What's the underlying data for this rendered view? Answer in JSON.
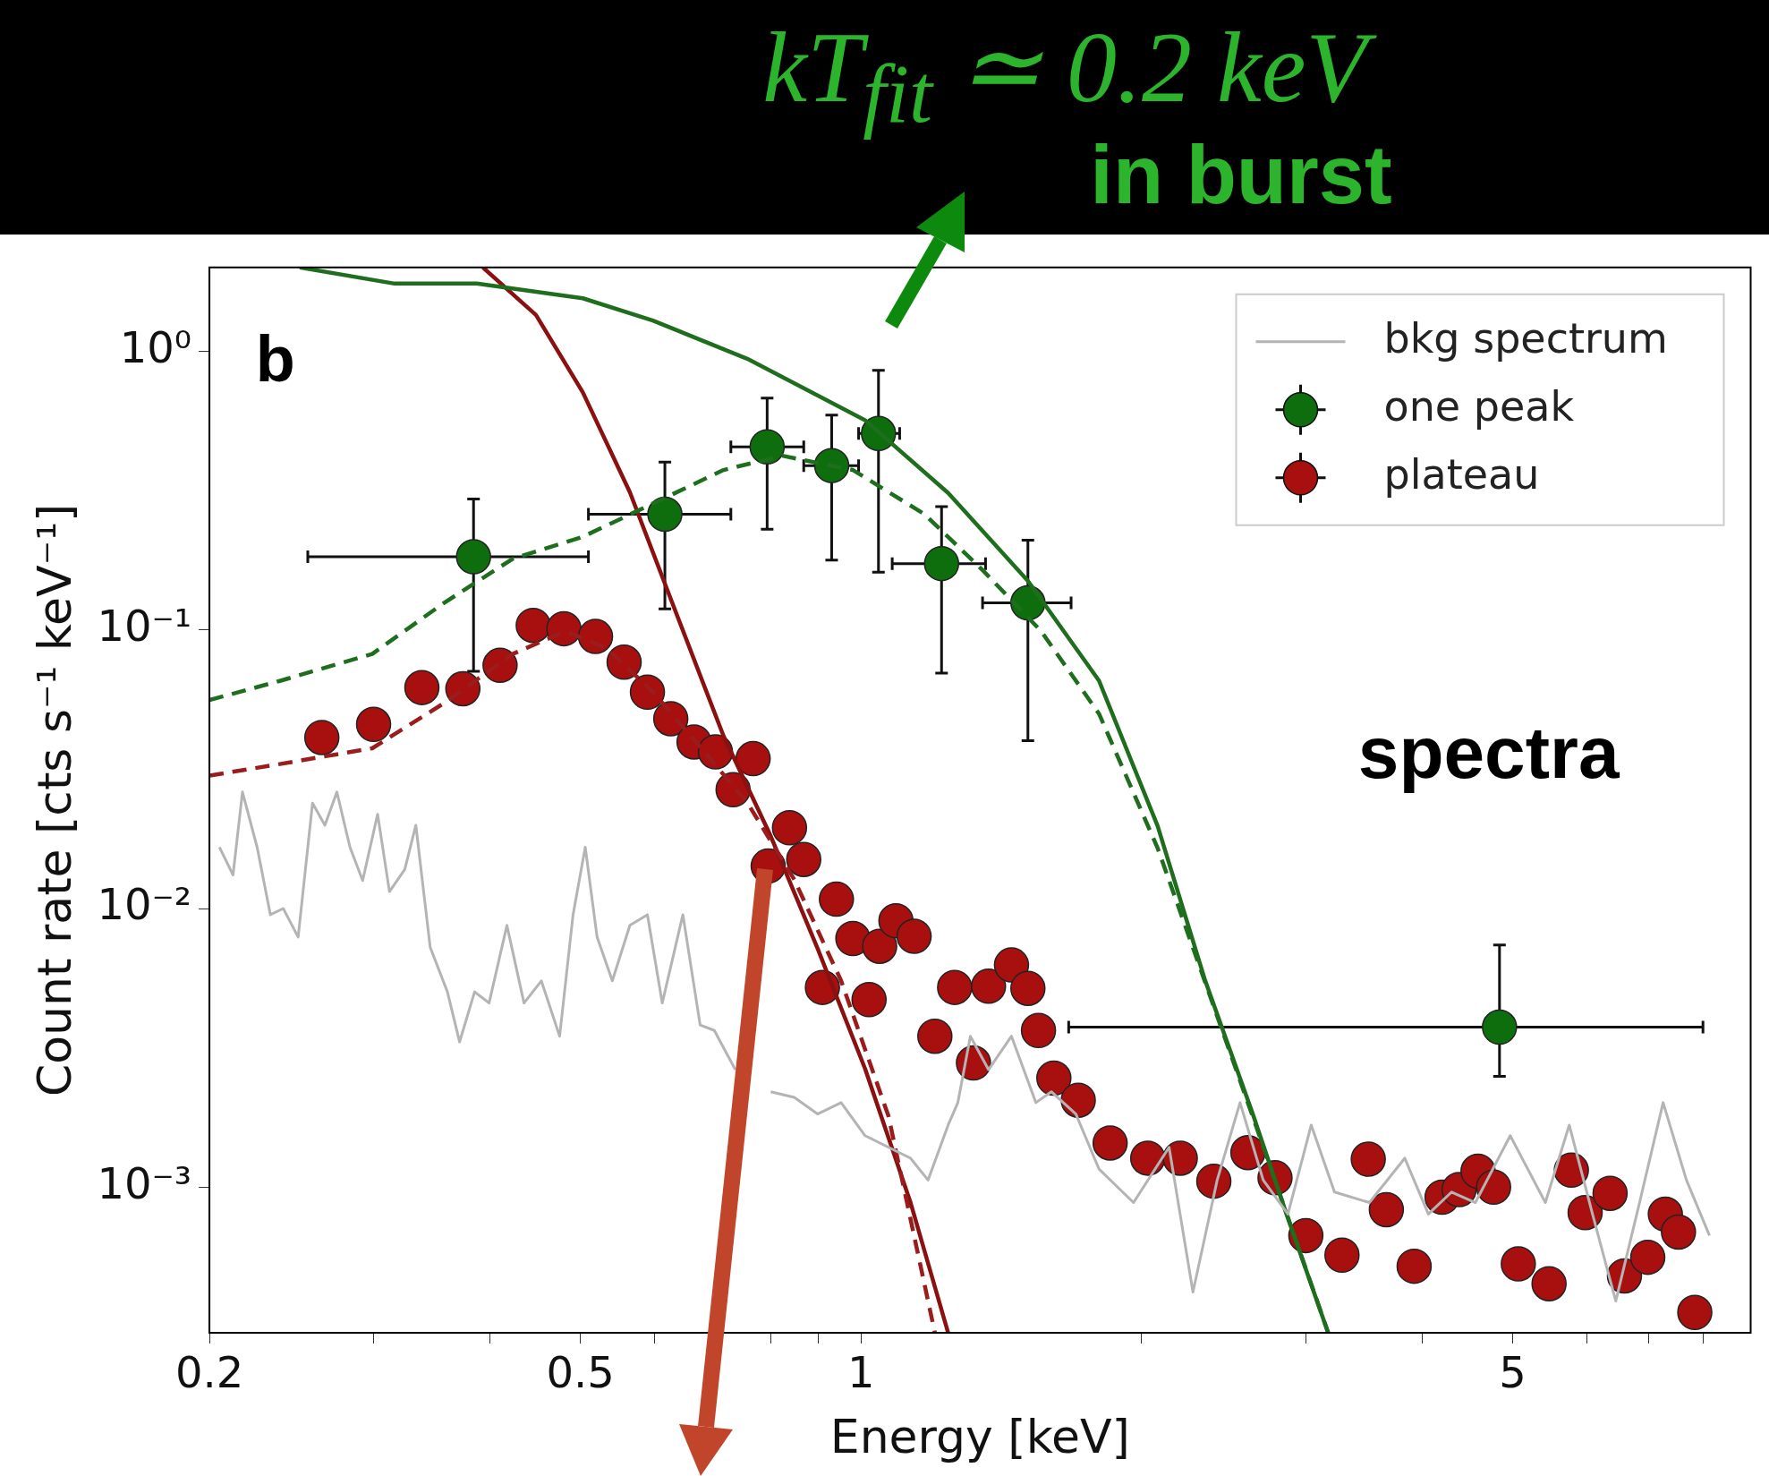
{
  "chart_data": {
    "type": "scatter",
    "title": "kT$_{fit}$ ≃ 0.2 keV",
    "subtitle": "in burst",
    "xlabel": "Energy [keV]",
    "ylabel": "Count rate [cts s⁻¹ keV⁻¹]",
    "log": "xy",
    "grid": false,
    "legend": "top right",
    "marker": "circle",
    "xlim": [
      0.2,
      9
    ],
    "ylim": [
      0.0003,
      2
    ],
    "xticks": [
      {
        "value": 0.2,
        "label": "0.2"
      },
      {
        "value": 0.3,
        "label": null
      },
      {
        "value": 0.4,
        "label": null
      },
      {
        "value": 0.5,
        "label": "0.5"
      },
      {
        "value": 0.6,
        "label": null
      },
      {
        "value": 0.7,
        "label": null
      },
      {
        "value": 0.8,
        "label": null
      },
      {
        "value": 0.9,
        "label": null
      },
      1,
      {
        "value": 2,
        "label": null
      },
      {
        "value": 3,
        "label": null
      },
      {
        "value": 4,
        "label": null
      },
      5,
      {
        "value": 6,
        "label": null
      },
      {
        "value": 7,
        "label": null
      },
      {
        "value": 8,
        "label": null
      }
    ],
    "yticks": [
      {
        "value": 0.001,
        "label": "10⁻³"
      },
      {
        "value": 0.01,
        "label": "10⁻²"
      },
      {
        "value": 0.1,
        "label": "10⁻¹"
      },
      {
        "value": 1,
        "label": "10⁰"
      }
    ],
    "annotations": [
      "b",
      "spectra"
    ],
    "series": [
      {
        "name": "bkg spectrum",
        "type": "line",
        "marker": "none",
        "color": "#b4b4b4",
        "x": [
          0.205,
          0.212,
          0.217,
          0.225,
          0.2325,
          0.24,
          0.249,
          0.258,
          0.266,
          0.274,
          0.283,
          0.292,
          0.303,
          0.312,
          0.324,
          0.333,
          0.345,
          0.36,
          0.371,
          0.385,
          0.399,
          0.417,
          0.435,
          0.454,
          0.475,
          0.491,
          0.506,
          0.521,
          0.541,
          0.565,
          0.59,
          0.612,
          0.644,
          0.672,
          0.696,
          0.733,
          0.755,
          0.8,
          0.848,
          0.898,
          0.952,
          1.01,
          1.07,
          1.13,
          1.18,
          1.24,
          1.27,
          1.31,
          1.37,
          1.45,
          1.54,
          1.6,
          1.7,
          1.8,
          1.96,
          2.14,
          2.27,
          2.41,
          2.55,
          2.7,
          2.87,
          3.04,
          3.22,
          3.51,
          3.83,
          4.06,
          4.3,
          4.56,
          4.97,
          5.42,
          5.75,
          6.09,
          6.45,
          6.84,
          7.25,
          7.68,
          8.13
        ],
        "values": [
          0.0166,
          0.0132,
          0.0262,
          0.0166,
          0.0095,
          0.01,
          0.0079,
          0.0239,
          0.0199,
          0.0262,
          0.0166,
          0.0126,
          0.0218,
          0.0115,
          0.0138,
          0.0199,
          0.00726,
          0.00502,
          0.00332,
          0.00502,
          0.00458,
          0.0087,
          0.00458,
          0.0055,
          0.00348,
          0.0095,
          0.0166,
          0.0079,
          0.0055,
          0.0087,
          0.0095,
          0.00458,
          0.0095,
          0.00382,
          0.00365,
          0.00264,
          null,
          0.0022,
          0.0021,
          0.00183,
          0.00201,
          0.00153,
          0.00139,
          0.00127,
          0.00106,
          0.00167,
          0.00201,
          0.00348,
          0.00264,
          0.00348,
          0.00201,
          0.0022,
          0.00183,
          0.00116,
          0.00088,
          0.00139,
          0.00042,
          0.00106,
          0.00201,
          0.00106,
          0.0008,
          0.00167,
          0.00096,
          0.00088,
          0.00127,
          0.0008,
          0.00096,
          0.00088,
          0.00153,
          0.00088,
          0.00167,
          0.0008,
          0.00039,
          0.00088,
          0.00201,
          0.00106,
          0.00067
        ]
      },
      {
        "type": "line",
        "marker": "none",
        "color": "#1e6e1e",
        "line_style": "dashed",
        "x": [
          0.2,
          0.238,
          0.299,
          0.357,
          0.423,
          0.503,
          0.598,
          0.712,
          0.823,
          0.98,
          1.17,
          1.35,
          1.56,
          1.8,
          2.08,
          2.63,
          3.17
        ],
        "values": [
          0.056,
          0.0656,
          0.082,
          0.125,
          0.18,
          0.216,
          0.284,
          0.375,
          0.422,
          0.375,
          0.26,
          0.164,
          0.099,
          0.05,
          0.0165,
          0.0018,
          0.0003
        ]
      },
      {
        "type": "line",
        "marker": "none",
        "color": "#9b1c1c",
        "line_style": "dashed",
        "x": [
          0.2,
          0.238,
          0.299,
          0.357,
          0.423,
          0.482,
          0.533,
          0.598,
          0.672,
          0.755,
          0.848,
          0.952,
          1.07,
          1.2
        ],
        "values": [
          0.03,
          0.033,
          0.0376,
          0.0546,
          0.082,
          0.099,
          0.086,
          0.06,
          0.038,
          0.024,
          0.0127,
          0.0055,
          0.0018,
          0.0003
        ]
      },
      {
        "type": "line",
        "marker": "none",
        "color": "#1e6e1e",
        "line_style": "solid",
        "x": [
          0.25,
          0.316,
          0.387,
          0.503,
          0.598,
          0.755,
          1.01,
          1.24,
          1.51,
          1.8,
          2.08,
          2.34,
          2.63,
          2.86,
          3.17
        ],
        "values": [
          2,
          1.75,
          1.75,
          1.55,
          1.29,
          0.94,
          0.566,
          0.31,
          0.15,
          0.0657,
          0.0198,
          0.0055,
          0.00184,
          0.0008,
          0.0003
        ]
      },
      {
        "type": "line",
        "marker": "none",
        "color": "#8b1010",
        "line_style": "solid",
        "x": [
          0.393,
          0.448,
          0.503,
          0.565,
          0.634,
          0.712,
          0.8,
          0.898,
          1.01,
          1.13,
          1.24
        ],
        "values": [
          2,
          1.35,
          0.712,
          0.312,
          0.114,
          0.0416,
          0.0182,
          0.0072,
          0.00266,
          0.00088,
          0.0003
        ]
      },
      {
        "name": "one peak",
        "color": "#0e6e0e",
        "x": [
          0.384,
          0.616,
          0.793,
          0.93,
          1.044,
          1.22,
          1.51,
          4.84
        ],
        "values": [
          0.183,
          0.26,
          0.454,
          0.389,
          0.507,
          0.173,
          0.125,
          0.00375
        ],
        "errors": [
          [
            0.071,
            0.295
          ],
          [
            0.119,
            0.4
          ],
          [
            0.23,
            0.68
          ],
          [
            0.178,
            0.59
          ],
          [
            0.161,
            0.855
          ],
          [
            0.07,
            0.277
          ],
          [
            0.04,
            0.21
          ],
          [
            0.0025,
            0.0074
          ]
        ],
        "xerrors": [
          [
            0.255,
            0.51
          ],
          [
            0.51,
            0.725
          ],
          [
            0.725,
            0.868
          ],
          [
            0.868,
            0.994
          ],
          [
            0.994,
            1.1
          ],
          [
            1.08,
            1.36
          ],
          [
            1.35,
            1.68
          ],
          [
            1.67,
            8
          ]
        ]
      },
      {
        "name": "plateau",
        "color": "#a81010",
        "x": [
          0.264,
          0.3,
          0.338,
          0.374,
          0.41,
          0.445,
          0.48,
          0.519,
          0.557,
          0.59,
          0.625,
          0.662,
          0.698,
          0.766,
          0.729,
          0.838,
          0.795,
          0.868,
          0.941,
          0.909,
          0.98,
          1.047,
          1.09,
          1.14,
          1.02,
          1.26,
          1.2,
          1.37,
          1.45,
          1.51,
          1.32,
          1.55,
          1.61,
          1.71,
          1.85,
          2.03,
          2.2,
          2.39,
          2.6,
          2.78,
          3,
          3.28,
          3.5,
          3.66,
          3.92,
          4.2,
          4.38,
          4.59,
          4.77,
          5.07,
          5.47,
          5.78,
          5.98,
          6.36,
          6.59,
          6.98,
          7.29,
          7.53,
          7.84
        ],
        "values": [
          0.0411,
          0.0458,
          0.0621,
          0.0615,
          0.0746,
          0.1038,
          0.101,
          0.0947,
          0.0766,
          0.0598,
          0.048,
          0.0396,
          0.0365,
          0.0345,
          0.0267,
          0.0195,
          0.0142,
          0.015,
          0.0108,
          0.00521,
          0.0078,
          0.00732,
          0.00904,
          0.00795,
          0.00471,
          0.00521,
          0.00348,
          0.00526,
          0.00627,
          0.00517,
          0.00279,
          0.00365,
          0.00246,
          0.00205,
          0.00144,
          0.00127,
          0.00127,
          0.00105,
          0.00133,
          0.00108,
          0.00067,
          0.00057,
          0.00126,
          0.00083,
          0.00052,
          0.00092,
          0.00098,
          0.00114,
          0.001,
          0.00053,
          0.00045,
          0.00115,
          0.00081,
          0.00095,
          0.00048,
          0.00056,
          0.0008,
          0.00069,
          0.000355
        ]
      }
    ]
  }
}
